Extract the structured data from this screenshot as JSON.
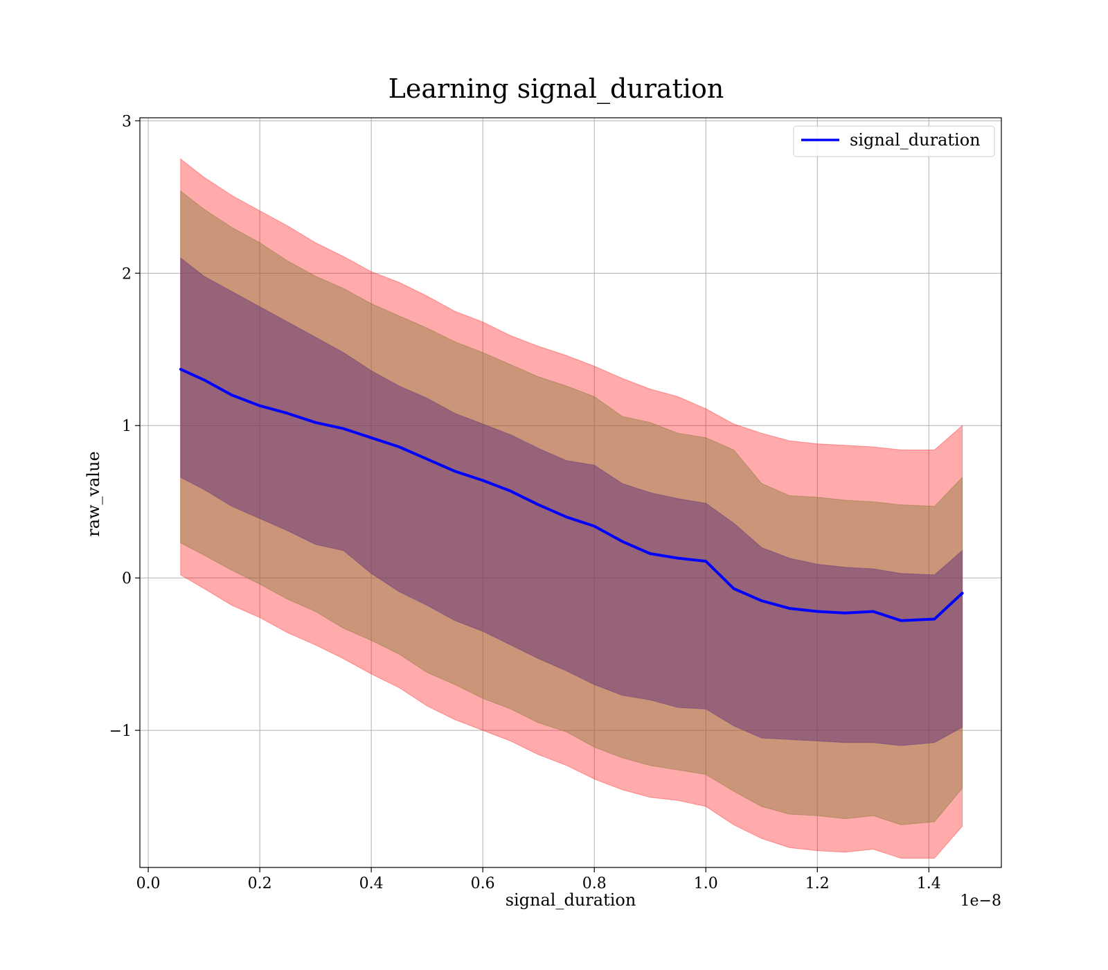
{
  "chart_data": {
    "type": "line",
    "title": "Learning signal_duration",
    "xlabel": "signal_duration",
    "ylabel": "raw_value",
    "x_offset_text": "1e−8",
    "xlim": [
      -0.015,
      1.53
    ],
    "ylim": [
      -1.9,
      3.02
    ],
    "xticks": [
      0.0,
      0.2,
      0.4,
      0.6,
      0.8,
      1.0,
      1.2,
      1.4
    ],
    "xtick_labels": [
      "0.0",
      "0.2",
      "0.4",
      "0.6",
      "0.8",
      "1.0",
      "1.2",
      "1.4"
    ],
    "yticks": [
      -1,
      0,
      1,
      2,
      3
    ],
    "ytick_labels": [
      "−1",
      "0",
      "1",
      "2",
      "3"
    ],
    "grid": true,
    "legend": {
      "position": "top-right",
      "entries": [
        "signal_duration"
      ]
    },
    "colors": {
      "line": "#0000ff",
      "band_outer": "#ff0000",
      "band_middle": "#8b7a3c",
      "band_inner": "#6b3a7a"
    },
    "x": [
      0.058,
      0.1,
      0.15,
      0.2,
      0.25,
      0.3,
      0.35,
      0.4,
      0.45,
      0.5,
      0.55,
      0.6,
      0.65,
      0.7,
      0.75,
      0.8,
      0.85,
      0.9,
      0.95,
      1.0,
      1.05,
      1.1,
      1.15,
      1.2,
      1.25,
      1.3,
      1.35,
      1.41,
      1.46
    ],
    "series": [
      {
        "name": "signal_duration",
        "values": [
          1.37,
          1.3,
          1.2,
          1.13,
          1.08,
          1.02,
          0.98,
          0.92,
          0.86,
          0.78,
          0.7,
          0.64,
          0.57,
          0.48,
          0.4,
          0.34,
          0.24,
          0.16,
          0.13,
          0.11,
          -0.07,
          -0.15,
          -0.2,
          -0.22,
          -0.23,
          -0.22,
          -0.28,
          -0.27,
          -0.1
        ]
      },
      {
        "name": "",
        "values": [
          2.1,
          1.98,
          1.88,
          1.78,
          1.68,
          1.58,
          1.48,
          1.36,
          1.26,
          1.18,
          1.08,
          1.01,
          0.94,
          0.85,
          0.77,
          0.74,
          0.62,
          0.56,
          0.52,
          0.49,
          0.36,
          0.2,
          0.13,
          0.09,
          0.07,
          0.06,
          0.03,
          0.02,
          0.18
        ]
      },
      {
        "name": "",
        "values": [
          0.66,
          0.58,
          0.47,
          0.39,
          0.31,
          0.22,
          0.18,
          0.03,
          -0.09,
          -0.18,
          -0.28,
          -0.35,
          -0.44,
          -0.53,
          -0.61,
          -0.7,
          -0.77,
          -0.8,
          -0.85,
          -0.86,
          -0.97,
          -1.05,
          -1.06,
          -1.07,
          -1.08,
          -1.08,
          -1.1,
          -1.08,
          -0.98
        ]
      },
      {
        "name": "",
        "values": [
          2.54,
          2.42,
          2.3,
          2.2,
          2.08,
          1.98,
          1.9,
          1.8,
          1.72,
          1.64,
          1.55,
          1.48,
          1.4,
          1.32,
          1.26,
          1.19,
          1.06,
          1.02,
          0.95,
          0.92,
          0.84,
          0.62,
          0.54,
          0.53,
          0.51,
          0.5,
          0.48,
          0.47,
          0.66
        ]
      },
      {
        "name": "",
        "values": [
          0.23,
          0.15,
          0.05,
          -0.04,
          -0.14,
          -0.22,
          -0.33,
          -0.41,
          -0.5,
          -0.62,
          -0.7,
          -0.79,
          -0.86,
          -0.95,
          -1.01,
          -1.11,
          -1.18,
          -1.23,
          -1.26,
          -1.29,
          -1.4,
          -1.5,
          -1.55,
          -1.56,
          -1.58,
          -1.56,
          -1.62,
          -1.6,
          -1.38
        ]
      },
      {
        "name": "",
        "values": [
          2.75,
          2.63,
          2.51,
          2.41,
          2.31,
          2.2,
          2.11,
          2.01,
          1.94,
          1.85,
          1.75,
          1.68,
          1.59,
          1.52,
          1.46,
          1.39,
          1.31,
          1.24,
          1.19,
          1.11,
          1.01,
          0.95,
          0.9,
          0.88,
          0.87,
          0.86,
          0.84,
          0.84,
          1.0
        ]
      },
      {
        "name": "",
        "values": [
          0.02,
          -0.07,
          -0.18,
          -0.26,
          -0.36,
          -0.44,
          -0.53,
          -0.63,
          -0.72,
          -0.84,
          -0.93,
          -1.0,
          -1.07,
          -1.16,
          -1.23,
          -1.32,
          -1.39,
          -1.44,
          -1.46,
          -1.5,
          -1.62,
          -1.71,
          -1.77,
          -1.79,
          -1.8,
          -1.78,
          -1.84,
          -1.84,
          -1.63
        ]
      }
    ]
  }
}
